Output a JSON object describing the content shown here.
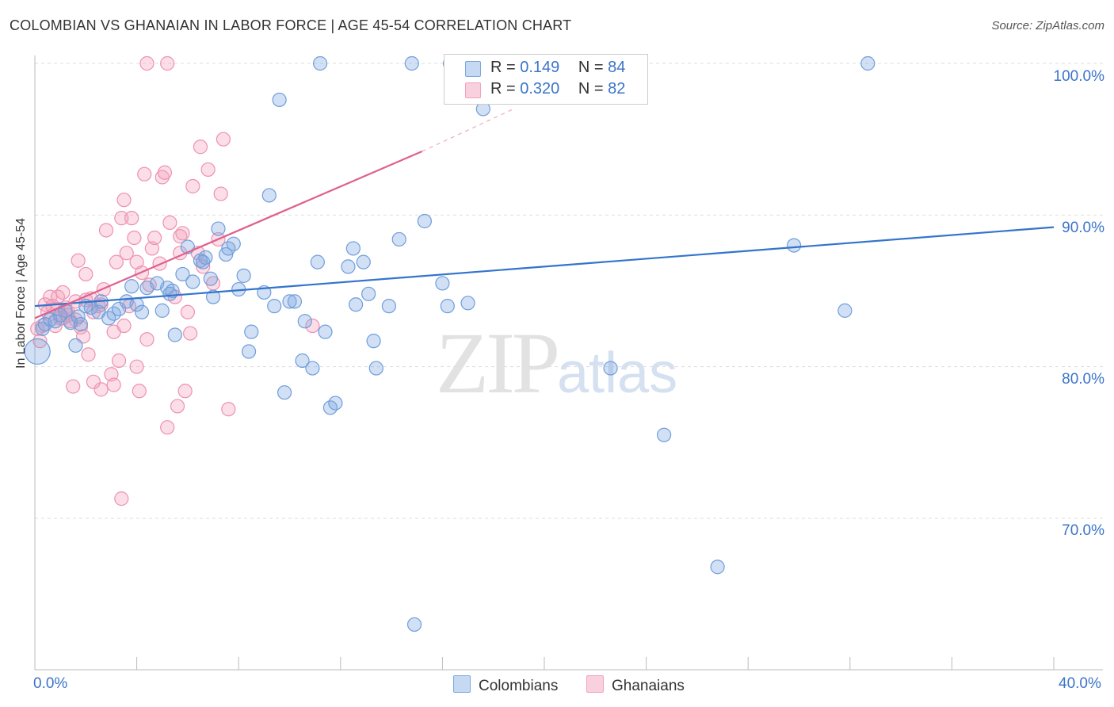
{
  "header": {
    "title": "COLOMBIAN VS GHANAIAN IN LABOR FORCE | AGE 45-54 CORRELATION CHART",
    "source": "Source: ZipAtlas.com"
  },
  "watermark": {
    "zip": "ZIP",
    "atlas": "atlas"
  },
  "legend": {
    "colombians": {
      "r_label": "R = ",
      "r_value": "0.149",
      "n_label": "N = ",
      "n_value": "84",
      "color": "#7aa7e0"
    },
    "ghanaians": {
      "r_label": "R = ",
      "r_value": "0.320",
      "n_label": "N = ",
      "n_value": "82",
      "color": "#f4a0bb"
    }
  },
  "bottom_legend": {
    "colombians": "Colombians",
    "ghanaians": "Ghanaians"
  },
  "chart_data": {
    "type": "scatter",
    "title": "COLOMBIAN VS GHANAIAN IN LABOR FORCE | AGE 45-54 CORRELATION CHART",
    "xlabel": "",
    "ylabel": "In Labor Force | Age 45-54",
    "xlim": [
      0,
      40
    ],
    "ylim": [
      62,
      101
    ],
    "x_tick_labels": [
      "0.0%",
      "40.0%"
    ],
    "y_tick_labels": [
      "100.0%",
      "90.0%",
      "80.0%",
      "70.0%"
    ],
    "y_ticks": [
      100,
      90,
      80,
      70
    ],
    "grid": true,
    "legend_position": "top-center",
    "series": [
      {
        "name": "Colombians",
        "color": "#5b93d8",
        "trend": {
          "x0": 0,
          "y0": 84.0,
          "x1": 40,
          "y1": 89.2
        },
        "points": [
          [
            0.1,
            81.0
          ],
          [
            0.3,
            82.5
          ],
          [
            0.4,
            82.8
          ],
          [
            0.6,
            83.1
          ],
          [
            0.8,
            83.0
          ],
          [
            1.0,
            83.4
          ],
          [
            1.2,
            83.7
          ],
          [
            1.4,
            82.9
          ],
          [
            1.6,
            81.4
          ],
          [
            1.7,
            83.3
          ],
          [
            1.8,
            82.8
          ],
          [
            2.0,
            84.0
          ],
          [
            2.2,
            83.9
          ],
          [
            2.5,
            83.6
          ],
          [
            2.6,
            84.3
          ],
          [
            2.9,
            83.2
          ],
          [
            3.1,
            83.5
          ],
          [
            3.3,
            83.8
          ],
          [
            3.6,
            84.3
          ],
          [
            3.8,
            85.3
          ],
          [
            4.0,
            84.1
          ],
          [
            4.2,
            83.6
          ],
          [
            4.4,
            85.2
          ],
          [
            4.8,
            85.5
          ],
          [
            5.0,
            83.7
          ],
          [
            5.2,
            85.2
          ],
          [
            5.4,
            85.0
          ],
          [
            5.5,
            82.1
          ],
          [
            5.8,
            86.1
          ],
          [
            6.0,
            87.9
          ],
          [
            6.2,
            85.6
          ],
          [
            6.5,
            87.0
          ],
          [
            6.7,
            87.2
          ],
          [
            6.9,
            85.8
          ],
          [
            7.0,
            84.6
          ],
          [
            7.2,
            89.1
          ],
          [
            7.5,
            87.4
          ],
          [
            7.6,
            87.8
          ],
          [
            7.8,
            88.1
          ],
          [
            8.0,
            85.1
          ],
          [
            8.2,
            86.0
          ],
          [
            8.4,
            81.0
          ],
          [
            8.5,
            82.3
          ],
          [
            9.0,
            84.9
          ],
          [
            9.2,
            91.3
          ],
          [
            9.4,
            84.0
          ],
          [
            9.6,
            97.6
          ],
          [
            9.8,
            78.3
          ],
          [
            10.0,
            84.3
          ],
          [
            10.2,
            84.3
          ],
          [
            10.5,
            80.4
          ],
          [
            10.6,
            83.0
          ],
          [
            10.9,
            79.9
          ],
          [
            11.1,
            86.9
          ],
          [
            11.4,
            82.3
          ],
          [
            11.6,
            77.3
          ],
          [
            11.8,
            77.6
          ],
          [
            12.3,
            86.6
          ],
          [
            12.5,
            87.8
          ],
          [
            12.6,
            84.1
          ],
          [
            12.9,
            86.9
          ],
          [
            13.1,
            84.8
          ],
          [
            13.3,
            81.7
          ],
          [
            13.4,
            79.9
          ],
          [
            13.9,
            84.0
          ],
          [
            14.3,
            88.4
          ],
          [
            11.2,
            100.0
          ],
          [
            14.8,
            100.0
          ],
          [
            15.3,
            89.6
          ],
          [
            16.0,
            85.5
          ],
          [
            16.2,
            84.0
          ],
          [
            16.3,
            100.0
          ],
          [
            17.0,
            84.2
          ],
          [
            17.6,
            97.0
          ],
          [
            22.6,
            79.9
          ],
          [
            24.7,
            75.5
          ],
          [
            26.8,
            66.8
          ],
          [
            29.8,
            88.0
          ],
          [
            31.8,
            83.7
          ],
          [
            32.7,
            100.0
          ],
          [
            14.9,
            63.0
          ],
          [
            18.3,
            100.0
          ],
          [
            6.6,
            86.9
          ],
          [
            5.3,
            84.8
          ]
        ]
      },
      {
        "name": "Ghanaians",
        "color": "#ec7fa2",
        "trend": {
          "x0": 0,
          "y0": 83.2,
          "x1": 15.2,
          "y1": 94.2
        },
        "trend_dashed": {
          "x0": 15.2,
          "y0": 94.2,
          "x1": 18.8,
          "y1": 97.0
        },
        "points": [
          [
            0.1,
            82.5
          ],
          [
            0.2,
            81.7
          ],
          [
            0.3,
            82.7
          ],
          [
            0.4,
            84.1
          ],
          [
            0.5,
            83.6
          ],
          [
            0.6,
            84.6
          ],
          [
            0.7,
            84.0
          ],
          [
            0.8,
            82.7
          ],
          [
            0.9,
            84.6
          ],
          [
            1.0,
            83.2
          ],
          [
            1.1,
            84.9
          ],
          [
            1.2,
            83.9
          ],
          [
            1.3,
            83.6
          ],
          [
            1.4,
            83.0
          ],
          [
            1.5,
            78.7
          ],
          [
            1.6,
            84.3
          ],
          [
            1.7,
            87.0
          ],
          [
            1.8,
            82.6
          ],
          [
            1.9,
            82.0
          ],
          [
            2.0,
            86.1
          ],
          [
            2.1,
            80.8
          ],
          [
            2.2,
            84.5
          ],
          [
            2.3,
            83.6
          ],
          [
            2.5,
            84.0
          ],
          [
            2.7,
            85.1
          ],
          [
            2.8,
            89.0
          ],
          [
            3.0,
            79.5
          ],
          [
            3.1,
            82.3
          ],
          [
            3.2,
            86.9
          ],
          [
            3.3,
            80.4
          ],
          [
            3.4,
            89.8
          ],
          [
            3.5,
            91.0
          ],
          [
            3.6,
            87.5
          ],
          [
            3.7,
            84.0
          ],
          [
            3.8,
            89.8
          ],
          [
            3.9,
            88.5
          ],
          [
            4.0,
            80.0
          ],
          [
            4.1,
            78.4
          ],
          [
            4.2,
            86.2
          ],
          [
            4.3,
            92.7
          ],
          [
            4.4,
            81.8
          ],
          [
            4.5,
            85.4
          ],
          [
            4.6,
            87.8
          ],
          [
            4.7,
            88.5
          ],
          [
            4.9,
            86.8
          ],
          [
            5.0,
            92.5
          ],
          [
            5.1,
            92.8
          ],
          [
            5.2,
            76.0
          ],
          [
            5.3,
            89.5
          ],
          [
            5.5,
            84.6
          ],
          [
            5.6,
            77.4
          ],
          [
            5.7,
            88.6
          ],
          [
            5.8,
            88.8
          ],
          [
            5.9,
            78.4
          ],
          [
            6.0,
            83.6
          ],
          [
            6.2,
            91.9
          ],
          [
            6.4,
            87.5
          ],
          [
            6.5,
            94.5
          ],
          [
            6.6,
            86.6
          ],
          [
            6.8,
            93.0
          ],
          [
            7.0,
            85.5
          ],
          [
            7.2,
            88.4
          ],
          [
            7.3,
            91.4
          ],
          [
            7.4,
            95.0
          ],
          [
            7.6,
            77.2
          ],
          [
            4.4,
            100.0
          ],
          [
            5.2,
            100.0
          ],
          [
            3.4,
            71.3
          ],
          [
            2.6,
            78.5
          ],
          [
            3.1,
            78.8
          ],
          [
            2.3,
            79.0
          ],
          [
            1.1,
            83.2
          ],
          [
            0.9,
            83.8
          ],
          [
            1.3,
            83.4
          ],
          [
            6.1,
            82.2
          ],
          [
            10.9,
            82.7
          ],
          [
            4.0,
            86.9
          ],
          [
            2.0,
            84.4
          ],
          [
            1.6,
            83.1
          ],
          [
            2.6,
            84.1
          ],
          [
            3.5,
            82.7
          ],
          [
            5.7,
            87.5
          ]
        ]
      }
    ]
  }
}
